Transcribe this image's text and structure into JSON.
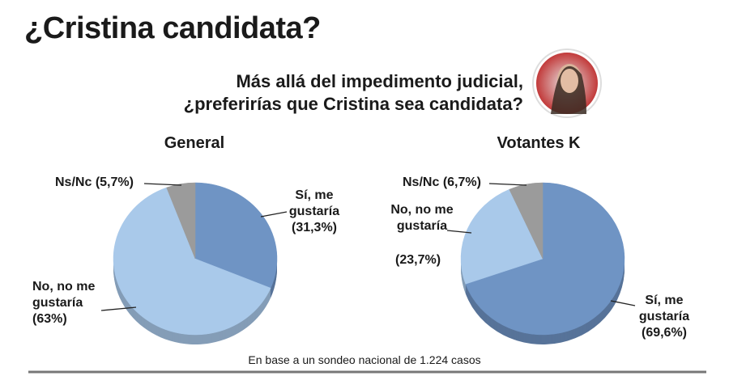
{
  "title": "¿Cristina candidata?",
  "question": [
    "Más allá del impedimento judicial,",
    "¿preferirías que Cristina sea candidata?"
  ],
  "note": "En base a un sondeo nacional de 1.224 casos",
  "chart_data": [
    {
      "type": "pie",
      "title": "General",
      "categories": [
        "Sí, me gustaría",
        "No, no me gustaría",
        "Ns/Nc"
      ],
      "values": [
        31.3,
        63,
        5.7
      ],
      "value_labels": [
        "(31,3%)",
        "(63%)",
        "(5,7%)"
      ],
      "colors": [
        "#6f94c4",
        "#a9c9ea",
        "#9b9b9b"
      ]
    },
    {
      "type": "pie",
      "title": "Votantes K",
      "categories": [
        "Sí, me gustaría",
        "No, no me gustaría",
        "Ns/Nc"
      ],
      "values": [
        69.6,
        23.7,
        6.7
      ],
      "value_labels": [
        "(69,6%)",
        "(23,7%)",
        "(6,7%)"
      ],
      "colors": [
        "#6f94c4",
        "#a9c9ea",
        "#9b9b9b"
      ]
    }
  ]
}
